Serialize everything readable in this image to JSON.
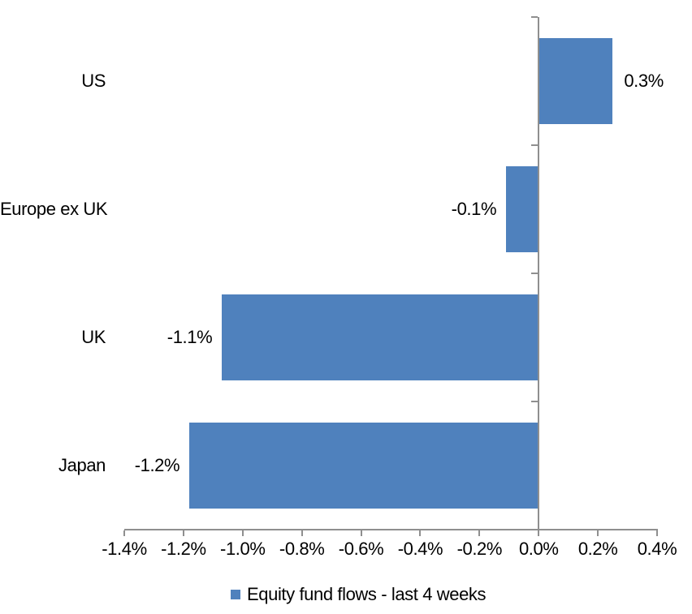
{
  "chart_data": {
    "type": "bar",
    "orientation": "horizontal",
    "title": "",
    "xlabel": "",
    "ylabel": "",
    "categories": [
      "US",
      "Europe ex UK",
      "UK",
      "Japan"
    ],
    "series": [
      {
        "name": "Equity fund flows - last 4 weeks",
        "values": [
          0.3,
          -0.1,
          -1.1,
          -1.2
        ],
        "data_labels": [
          "0.3%",
          "-0.1%",
          "-1.1%",
          "-1.2%"
        ],
        "plotted_values": [
          0.25,
          -0.11,
          -1.07,
          -1.18
        ],
        "color": "#4F81BD"
      }
    ],
    "xlim": [
      -1.4,
      0.4
    ],
    "x_tick_step": 0.2,
    "x_tick_labels": [
      "-1.4%",
      "-1.2%",
      "-1.0%",
      "-0.8%",
      "-0.6%",
      "-0.4%",
      "-0.2%",
      "0.0%",
      "0.2%",
      "0.4%"
    ],
    "grid": false,
    "legend_position": "bottom",
    "axis_color": "#8F8F8F",
    "bar_color": "#4F81BD",
    "text_color": "#000000",
    "background": "#FFFFFF"
  }
}
